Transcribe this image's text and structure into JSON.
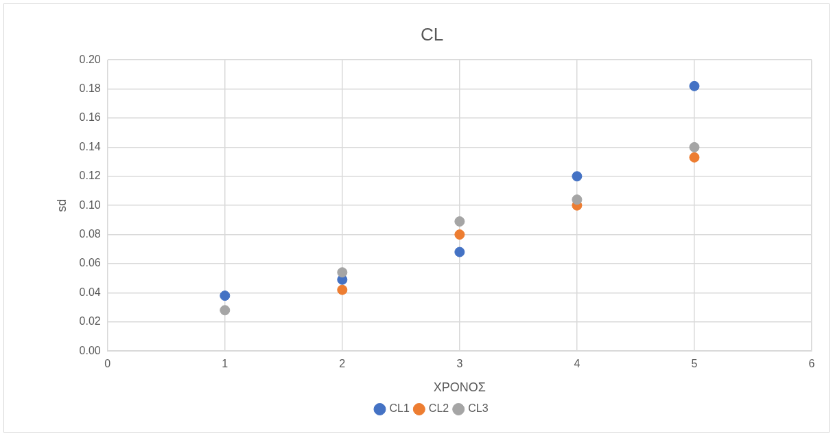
{
  "chart_data": {
    "type": "scatter",
    "title": "CL",
    "xlabel": "ΧΡΟΝΟΣ",
    "ylabel": "sd",
    "x": [
      1,
      2,
      3,
      4,
      5
    ],
    "series": [
      {
        "name": "CL1",
        "color": "#4472c4",
        "values": [
          0.038,
          0.049,
          0.068,
          0.12,
          0.182
        ]
      },
      {
        "name": "CL2",
        "color": "#ed7d31",
        "values": [
          null,
          0.042,
          0.08,
          0.1,
          0.133
        ]
      },
      {
        "name": "CL3",
        "color": "#a5a5a5",
        "values": [
          0.028,
          0.054,
          0.089,
          0.104,
          0.14
        ]
      }
    ],
    "xlim": [
      0,
      6
    ],
    "xticks": [
      0,
      1,
      2,
      3,
      4,
      5,
      6
    ],
    "ylim": [
      0,
      0.2
    ],
    "yticks": [
      {
        "value": 0,
        "label": "0.00"
      },
      {
        "value": 0.02,
        "label": "0.02"
      },
      {
        "value": 0.04,
        "label": "0.04"
      },
      {
        "value": 0.06,
        "label": "0.06"
      },
      {
        "value": 0.08,
        "label": "0.08"
      },
      {
        "value": 0.1,
        "label": "0.10"
      },
      {
        "value": 0.12,
        "label": "0.12"
      },
      {
        "value": 0.14,
        "label": "0.14"
      },
      {
        "value": 0.16,
        "label": "0.16"
      },
      {
        "value": 0.18,
        "label": "0.18"
      },
      {
        "value": 0.2,
        "label": "0.20"
      }
    ],
    "grid": true,
    "legend": "bottom",
    "marker": "circle"
  }
}
